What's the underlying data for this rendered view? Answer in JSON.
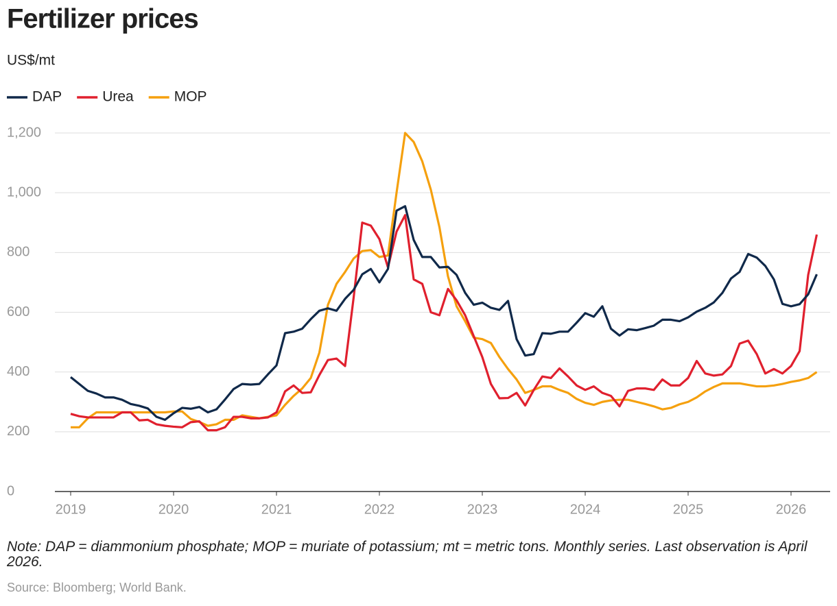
{
  "chart_data": {
    "type": "line",
    "title": "Fertilizer prices",
    "y_label": "US$/mt",
    "note": "Note: DAP = diammonium phosphate; MOP = muriate of potassium; mt = metric tons. Monthly series. Last observation is April 2026.",
    "source": "Source: Bloomberg; World Bank.",
    "categories": [
      "2019",
      null,
      null,
      null,
      null,
      null,
      null,
      null,
      null,
      null,
      null,
      null,
      "2020",
      null,
      null,
      null,
      null,
      null,
      null,
      null,
      null,
      null,
      null,
      null,
      "2021",
      null,
      null,
      null,
      null,
      null,
      null,
      null,
      null,
      null,
      null,
      null,
      "2022",
      null,
      null,
      null,
      null,
      null,
      null,
      null,
      null,
      null,
      null,
      null,
      "2023",
      null,
      null,
      null,
      null,
      null,
      null,
      null,
      null,
      null,
      null,
      null,
      "2024",
      null,
      null,
      null,
      null,
      null,
      null,
      null,
      null,
      null,
      null,
      null,
      "2025",
      null,
      null,
      null,
      null,
      null,
      null,
      null,
      null,
      null,
      null,
      null,
      "2026",
      null,
      null,
      null
    ],
    "series": [
      {
        "name": "DAP",
        "color": "#10294a",
        "values": [
          383,
          360,
          337,
          328,
          315,
          315,
          307,
          293,
          287,
          278,
          250,
          240,
          262,
          280,
          277,
          283,
          265,
          275,
          308,
          343,
          360,
          358,
          360,
          392,
          422,
          530,
          535,
          545,
          577,
          605,
          613,
          605,
          645,
          675,
          727,
          745,
          700,
          745,
          940,
          955,
          842,
          785,
          785,
          750,
          752,
          725,
          665,
          625,
          632,
          615,
          608,
          638,
          510,
          455,
          460,
          530,
          528,
          535,
          535,
          565,
          597,
          585,
          620,
          545,
          522,
          543,
          540,
          547,
          555,
          575,
          575,
          570,
          583,
          602,
          615,
          633,
          665,
          713,
          735,
          795,
          783,
          755,
          710,
          628,
          620,
          627,
          660,
          727
        ]
      },
      {
        "name": "Urea",
        "color": "#e0202e",
        "values": [
          260,
          252,
          248,
          248,
          248,
          248,
          265,
          265,
          238,
          240,
          225,
          220,
          217,
          215,
          232,
          235,
          205,
          205,
          215,
          250,
          250,
          245,
          245,
          248,
          265,
          335,
          355,
          330,
          332,
          390,
          440,
          445,
          420,
          650,
          900,
          890,
          845,
          750,
          870,
          925,
          710,
          695,
          600,
          590,
          678,
          640,
          590,
          520,
          450,
          360,
          312,
          313,
          330,
          288,
          340,
          385,
          380,
          412,
          385,
          355,
          340,
          352,
          330,
          320,
          285,
          337,
          345,
          345,
          340,
          375,
          355,
          355,
          380,
          437,
          395,
          388,
          392,
          420,
          495,
          505,
          460,
          395,
          410,
          395,
          420,
          470,
          725,
          860
        ]
      },
      {
        "name": "MOP",
        "color": "#f5a00e",
        "values": [
          215,
          215,
          245,
          265,
          265,
          265,
          265,
          265,
          265,
          265,
          265,
          265,
          268,
          268,
          243,
          233,
          220,
          225,
          240,
          240,
          255,
          250,
          245,
          250,
          255,
          290,
          320,
          345,
          380,
          465,
          625,
          695,
          735,
          780,
          805,
          808,
          785,
          790,
          1000,
          1200,
          1170,
          1105,
          1010,
          885,
          720,
          620,
          570,
          515,
          510,
          497,
          450,
          410,
          375,
          330,
          340,
          352,
          352,
          340,
          330,
          310,
          297,
          290,
          300,
          305,
          307,
          307,
          300,
          293,
          285,
          275,
          280,
          292,
          300,
          315,
          335,
          350,
          362,
          362,
          362,
          357,
          352,
          352,
          355,
          360,
          367,
          372,
          380,
          400
        ]
      }
    ],
    "ylim": [
      0,
      1200
    ],
    "yticks": [
      0,
      200,
      400,
      600,
      800,
      {
        "value": 1000,
        "label": "1,000"
      },
      {
        "value": 1200,
        "label": "1,200"
      }
    ],
    "grid": true
  }
}
